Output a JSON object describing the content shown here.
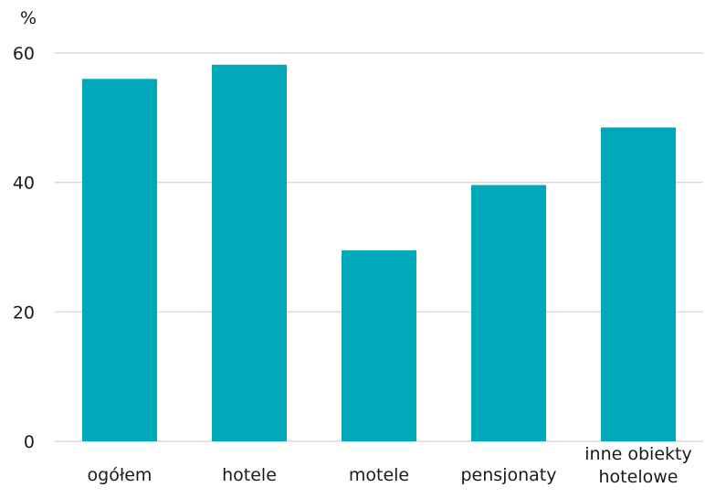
{
  "chart_data": {
    "type": "bar",
    "unit_label": "%",
    "categories": [
      [
        "ogółem"
      ],
      [
        "hotele"
      ],
      [
        "motele"
      ],
      [
        "pensjonaty"
      ],
      [
        "inne obiekty",
        "hotelowe"
      ]
    ],
    "values": [
      56.0,
      58.2,
      29.5,
      39.6,
      48.5
    ],
    "y_ticks": [
      "0",
      "20",
      "40",
      "60"
    ],
    "ylim": [
      0,
      60
    ],
    "grid": true,
    "legend": "none",
    "colors": {
      "bar": "#00a8b9",
      "grid": "#d9d9d9",
      "text": "#1a1a1a"
    }
  }
}
